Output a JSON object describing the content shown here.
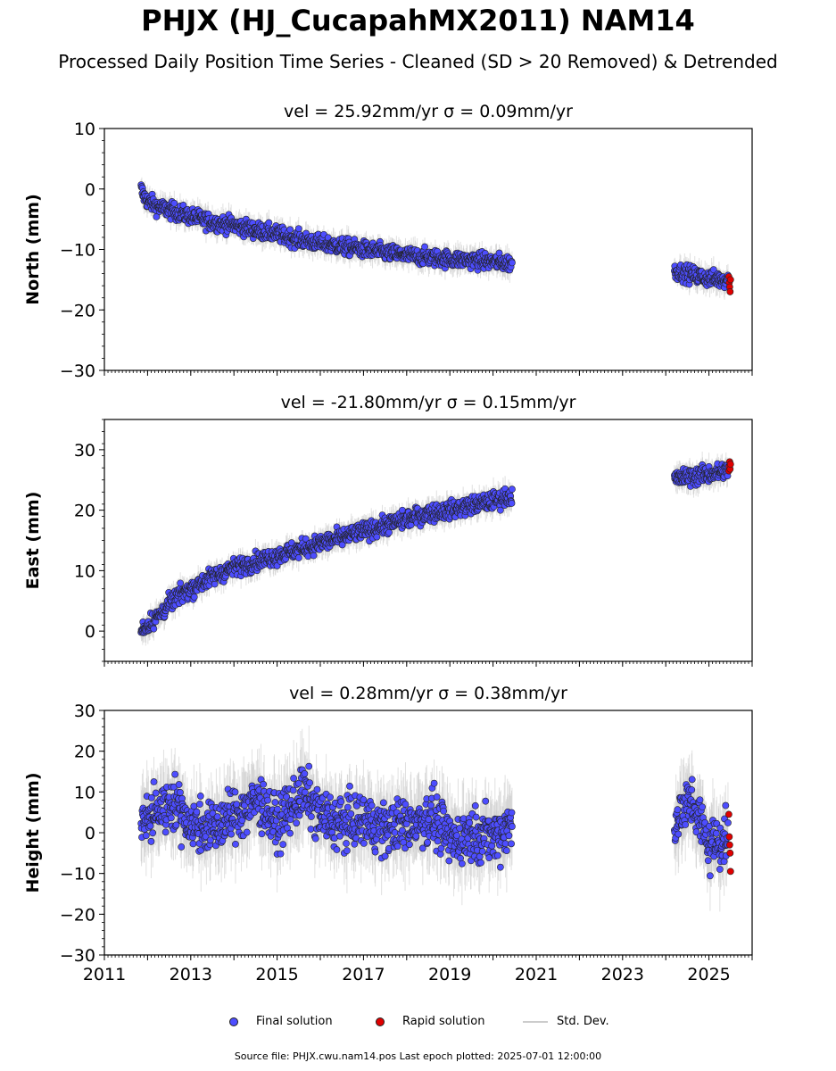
{
  "header": {
    "title": "PHJX (HJ_CucapahMX2011) NAM14",
    "subtitle": "Processed Daily Position Time Series - Cleaned (SD > 20 Removed) & Detrended"
  },
  "legend": {
    "final": "Final solution",
    "rapid": "Rapid solution",
    "std": "Std. Dev."
  },
  "footer": "Source file: PHJX.cwu.nam14.pos  Last epoch plotted: 2025-07-01 12:00:00",
  "colors": {
    "final": "#4d4dff",
    "rapid": "#e00000",
    "std": "#c8c8c8"
  },
  "chart_data": [
    {
      "type": "scatter",
      "panel_title": "vel = 25.92mm/yr   σ = 0.09mm/yr",
      "ylabel": "North (mm)",
      "xlim": [
        2011,
        2026
      ],
      "ylim": [
        -30,
        10
      ],
      "yticks": [
        -30,
        -20,
        -10,
        0,
        10
      ],
      "xticks": [
        2011,
        2013,
        2015,
        2017,
        2019,
        2021,
        2023,
        2025
      ],
      "show_xticklabels": false,
      "series": [
        {
          "name": "Final solution",
          "x": [
            2011.85,
            2011.9,
            2012.0,
            2012.25,
            2012.5,
            2013.0,
            2013.5,
            2014.0,
            2014.5,
            2015.0,
            2015.5,
            2016.0,
            2016.5,
            2017.0,
            2017.5,
            2018.0,
            2018.5,
            2019.0,
            2019.5,
            2020.0,
            2020.45,
            2024.2,
            2024.5,
            2025.0,
            2025.45
          ],
          "y": [
            0.0,
            -1.0,
            -2.0,
            -3.0,
            -3.5,
            -4.5,
            -5.5,
            -6.0,
            -6.8,
            -7.5,
            -8.3,
            -9.0,
            -9.5,
            -10.0,
            -10.5,
            -11.0,
            -11.3,
            -11.6,
            -11.8,
            -12.0,
            -12.3,
            -13.5,
            -14.0,
            -14.8,
            -15.0
          ],
          "spread": 1.5
        },
        {
          "name": "Rapid solution",
          "x": [
            2025.46,
            2025.47,
            2025.48,
            2025.49,
            2025.5
          ],
          "y": [
            -14.5,
            -15.5,
            -16.2,
            -17.0,
            -15.0
          ]
        }
      ]
    },
    {
      "type": "scatter",
      "panel_title": "vel = -21.80mm/yr   σ = 0.15mm/yr",
      "ylabel": "East (mm)",
      "xlim": [
        2011,
        2026
      ],
      "ylim": [
        -5,
        35
      ],
      "yticks": [
        0,
        10,
        20,
        30
      ],
      "xticks": [
        2011,
        2013,
        2015,
        2017,
        2019,
        2021,
        2023,
        2025
      ],
      "show_xticklabels": false,
      "series": [
        {
          "name": "Final solution",
          "x": [
            2011.85,
            2012.0,
            2012.25,
            2012.5,
            2012.75,
            2013.0,
            2013.5,
            2014.0,
            2014.5,
            2015.0,
            2015.5,
            2016.0,
            2016.5,
            2017.0,
            2017.5,
            2018.0,
            2018.5,
            2019.0,
            2019.5,
            2020.0,
            2020.45,
            2024.2,
            2024.5,
            2025.0,
            2025.45
          ],
          "y": [
            0.0,
            1.0,
            2.5,
            4.5,
            6.0,
            7.0,
            9.0,
            10.5,
            11.5,
            12.5,
            13.5,
            14.5,
            15.5,
            16.5,
            17.5,
            18.5,
            19.5,
            20.0,
            20.8,
            21.5,
            22.5,
            25.0,
            25.5,
            26.0,
            26.5
          ],
          "spread": 1.6
        },
        {
          "name": "Rapid solution",
          "x": [
            2025.46,
            2025.47,
            2025.48,
            2025.49,
            2025.5
          ],
          "y": [
            26.5,
            27.2,
            28.0,
            26.8,
            27.6
          ]
        }
      ]
    },
    {
      "type": "scatter",
      "panel_title": "vel = 0.28mm/yr   σ = 0.38mm/yr",
      "ylabel": "Height (mm)",
      "xlim": [
        2011,
        2026
      ],
      "ylim": [
        -30,
        30
      ],
      "yticks": [
        -30,
        -20,
        -10,
        0,
        10,
        20,
        30
      ],
      "xticks": [
        2011,
        2013,
        2015,
        2017,
        2019,
        2021,
        2023,
        2025
      ],
      "show_xticklabels": true,
      "series": [
        {
          "name": "Final solution",
          "x": [
            2011.85,
            2012.2,
            2012.6,
            2013.0,
            2013.5,
            2014.0,
            2014.6,
            2015.0,
            2015.6,
            2016.0,
            2016.5,
            2017.0,
            2017.5,
            2018.0,
            2018.6,
            2019.0,
            2019.5,
            2020.0,
            2020.45,
            2024.2,
            2024.6,
            2025.0,
            2025.45
          ],
          "y": [
            2.0,
            5.0,
            8.0,
            2.0,
            1.0,
            4.0,
            8.0,
            2.0,
            10.0,
            4.0,
            2.0,
            3.0,
            1.0,
            2.0,
            4.0,
            -2.0,
            0.0,
            -1.0,
            2.0,
            3.0,
            8.0,
            -3.0,
            -1.0
          ],
          "spread": 7
        },
        {
          "name": "Rapid solution",
          "x": [
            2025.46,
            2025.47,
            2025.48,
            2025.49,
            2025.5
          ],
          "y": [
            4.5,
            -1.0,
            -3.0,
            -5.0,
            -9.5
          ]
        }
      ]
    }
  ]
}
